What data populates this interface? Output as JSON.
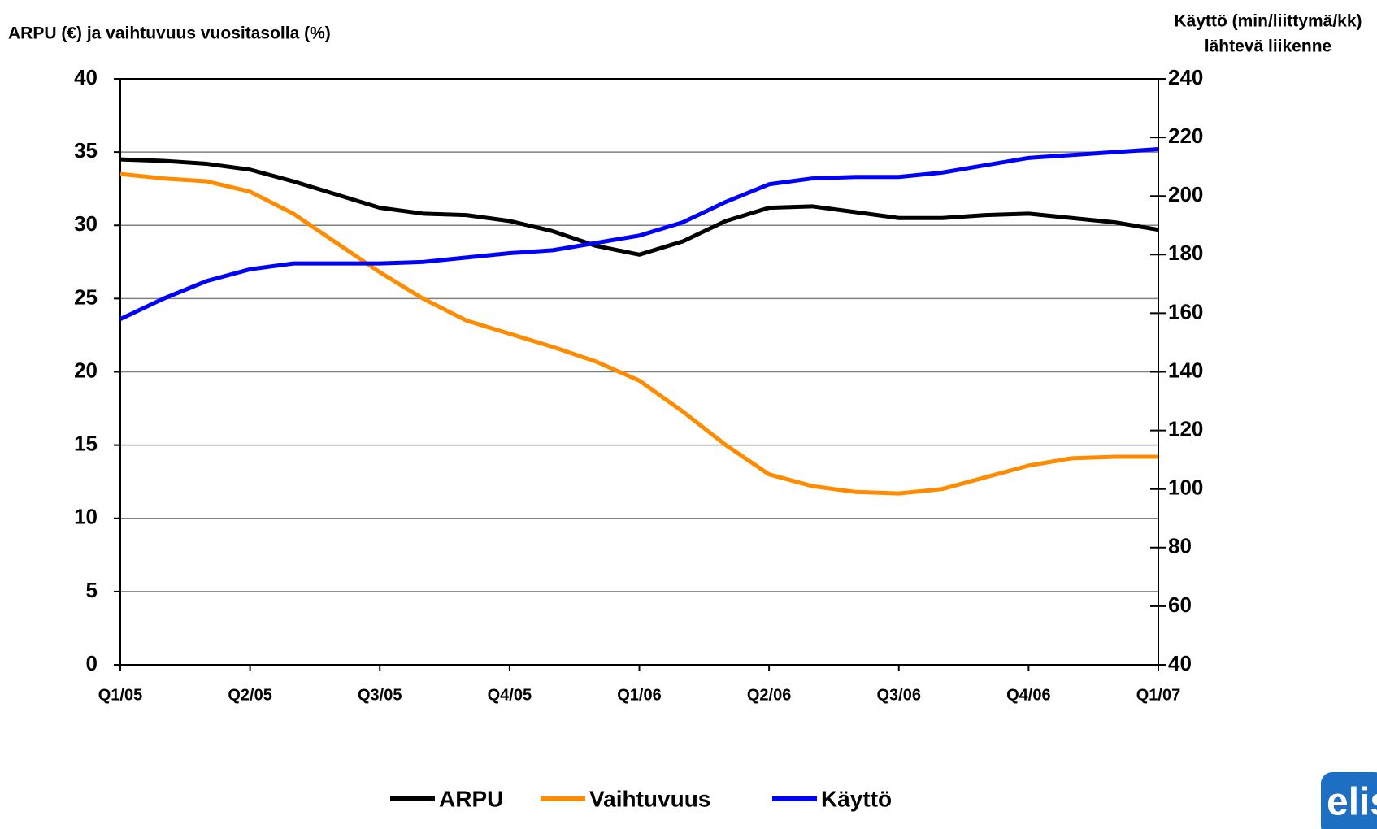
{
  "chart_data": {
    "type": "line",
    "y_label": "ARPU (€) ja vaihtuvuus vuositasolla (%)",
    "y2_label": [
      "Käyttö (min/liittymä/kk)",
      "lähtevä liikenne"
    ],
    "categories": [
      "Q1/05",
      null,
      null,
      "Q2/05",
      null,
      null,
      "Q3/05",
      null,
      null,
      "Q4/05",
      null,
      null,
      "Q1/06",
      null,
      null,
      "Q2/06",
      null,
      null,
      "Q3/06",
      null,
      null,
      "Q4/06",
      null,
      null,
      "Q1/07"
    ],
    "series": [
      {
        "name": "ARPU",
        "color": "#000000",
        "values": [
          34.5,
          34.4,
          34.2,
          33.8,
          33.0,
          32.1,
          31.2,
          30.8,
          30.7,
          30.3,
          29.6,
          28.6,
          28.0,
          28.9,
          30.3,
          31.2,
          31.3,
          30.9,
          30.5,
          30.5,
          30.7,
          30.8,
          30.5,
          30.2,
          29.7
        ]
      },
      {
        "name": "Vaihtuvuus",
        "color": "#ff8c00",
        "values": [
          33.5,
          33.2,
          33.0,
          32.3,
          30.8,
          28.8,
          26.8,
          25.0,
          23.5,
          22.6,
          21.7,
          20.7,
          19.4,
          17.3,
          15.0,
          13.0,
          12.2,
          11.8,
          11.7,
          12.0,
          12.8,
          13.6,
          14.1,
          14.2,
          14.2
        ]
      },
      {
        "name": "Käyttö",
        "color": "#0000ff",
        "axis": "y2",
        "values": [
          158,
          165,
          171,
          175,
          177,
          177,
          177,
          177.5,
          179,
          180.5,
          181.5,
          184,
          186.5,
          191,
          198,
          204,
          206,
          206.5,
          206.5,
          208,
          210.5,
          213,
          214,
          215,
          216
        ]
      }
    ],
    "ylim": [
      0,
      40
    ],
    "yticks": [
      0,
      5,
      10,
      15,
      20,
      25,
      30,
      35,
      40
    ],
    "y2lim": [
      40,
      240
    ],
    "y2ticks": [
      40,
      60,
      80,
      100,
      120,
      140,
      160,
      180,
      200,
      220,
      240
    ],
    "grid": true,
    "legend": "bottom",
    "logo": "elis"
  }
}
